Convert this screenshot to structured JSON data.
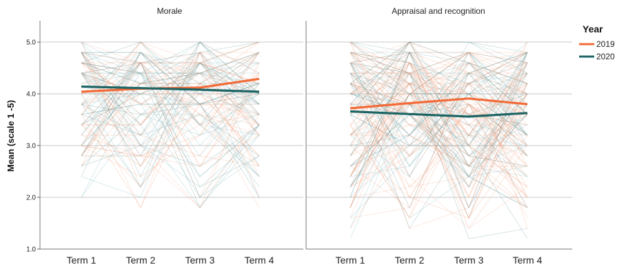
{
  "chart_data": {
    "type": "line",
    "ylabel": "Mean (scale 1 -5)",
    "ylim": [
      1.0,
      5.4
    ],
    "yticks": [
      "1.0",
      "2.0",
      "3.0",
      "4.0",
      "5.0"
    ],
    "categories": [
      "Term 1",
      "Term 2",
      "Term 3",
      "Term 4"
    ],
    "legend": {
      "title": "Year",
      "placement": "top-right",
      "entries": [
        {
          "label": "2019",
          "color": "#f26b38"
        },
        {
          "label": "2020",
          "color": "#1d6464"
        }
      ]
    },
    "panels": [
      {
        "title": "Morale",
        "series": [
          {
            "name": "2019",
            "color": "#f26b38",
            "values": [
              4.04,
              4.1,
              4.12,
              4.29
            ]
          },
          {
            "name": "2020",
            "color": "#1d6464",
            "values": [
              4.14,
              4.11,
              4.08,
              4.04
            ]
          }
        ]
      },
      {
        "title": "Appraisal and recognition",
        "series": [
          {
            "name": "2019",
            "color": "#f26b38",
            "values": [
              3.72,
              3.82,
              3.91,
              3.8
            ]
          },
          {
            "name": "2020",
            "color": "#1d6464",
            "values": [
              3.66,
              3.61,
              3.56,
              3.63
            ]
          }
        ]
      }
    ],
    "grid": true
  }
}
